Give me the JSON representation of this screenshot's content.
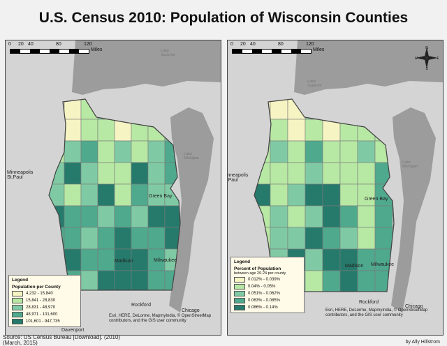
{
  "title": "U.S. Census 2010: Population of Wisconsin Counties",
  "scale": {
    "ticks": [
      "0",
      "20",
      "40",
      "80",
      "120"
    ],
    "unit": "Miles"
  },
  "left_map": {
    "legend": {
      "title": "Legend",
      "subtitle": "Population per County",
      "items": [
        {
          "label": "4,232 - 15,840",
          "color": "#f6f4c3"
        },
        {
          "label": "15,841 - 28,830",
          "color": "#b7e8a4"
        },
        {
          "label": "28,831 - 48,970",
          "color": "#7fcaa4"
        },
        {
          "label": "48,971 - 101,600",
          "color": "#4fa98d"
        },
        {
          "label": "101,601 - 947,735",
          "color": "#267a6b"
        }
      ]
    },
    "places": {
      "minneapolis": "Minneapolis\nSt.Paul",
      "madison": "Madison",
      "milwaukee": "Milwaukee",
      "green_bay": "Green Bay",
      "rockford": "Rockford",
      "chicago": "Chicago",
      "davenport": "Davenport",
      "lake_superior": "Lake\nSuperior",
      "lake_michigan": "Lake\nMichigan"
    },
    "attribution": "Esri, HERE, DeLorme, MapmyIndia, © OpenStreetMap contributors, and the GIS user community"
  },
  "right_map": {
    "legend": {
      "title": "Legend",
      "subtitle": "Percent of Population",
      "subtitle2": "between age 20-24 per county",
      "items": [
        {
          "label": "0.012% - 0.039%",
          "color": "#f6f4c3"
        },
        {
          "label": "0.04% - 0.05%",
          "color": "#b7e8a4"
        },
        {
          "label": "0.051% - 0.062%",
          "color": "#7fcaa4"
        },
        {
          "label": "0.063% - 0.085%",
          "color": "#4fa98d"
        },
        {
          "label": "0.086% - 0.14%",
          "color": "#267a6b"
        }
      ]
    },
    "places": {
      "minneapolis": "Minneapolis\nSt.Paul",
      "madison": "Madison",
      "milwaukee": "Milwaukee",
      "green_bay": "Green Bay",
      "rockford": "Rockford",
      "chicago": "Chicago",
      "lake_superior": "Lake\nSuperior",
      "lake_michigan": "Lake\nMichigan"
    },
    "attribution": "Esri, HERE, DeLorme, MapmyIndia, © OpenStreetMap contributors, and the GIS user community",
    "compass": {
      "n": "N",
      "s": "S",
      "e": "E",
      "w": "W"
    }
  },
  "source": "Source: US Census Bureau [Download]. (2010)\n(March, 2015)",
  "credit": "by Ally Hillstrom",
  "colors": {
    "class1": "#f6f4c3",
    "class2": "#b7e8a4",
    "class3": "#7fcaa4",
    "class4": "#4fa98d",
    "class5": "#267a6b",
    "water": "#9c9c9c",
    "land": "#d6d6d6"
  },
  "county_classes": {
    "left": [
      1,
      1,
      2,
      3,
      3,
      1,
      1,
      3,
      2,
      1,
      2,
      2,
      1,
      2,
      2,
      3,
      2,
      3,
      4,
      2,
      3,
      2,
      3,
      4,
      3,
      5,
      3,
      2,
      2,
      5,
      3,
      4,
      3,
      2,
      3,
      5,
      2,
      4,
      3,
      3,
      5,
      4,
      4,
      3,
      4,
      3,
      5,
      5,
      4,
      4,
      3,
      4,
      5,
      4,
      4,
      5,
      4,
      5,
      4,
      4,
      5,
      5,
      4,
      3,
      5,
      4,
      3,
      5,
      5,
      5,
      4,
      4
    ],
    "right": [
      1,
      1,
      1,
      3,
      4,
      2,
      1,
      4,
      2,
      2,
      1,
      2,
      1,
      2,
      2,
      2,
      2,
      3,
      2,
      4,
      2,
      2,
      3,
      2,
      2,
      2,
      2,
      3,
      2,
      2,
      2,
      4,
      5,
      2,
      3,
      5,
      5,
      2,
      2,
      4,
      2,
      3,
      2,
      3,
      5,
      4,
      2,
      4,
      2,
      3,
      3,
      5,
      4,
      3,
      2,
      4,
      2,
      3,
      5,
      3,
      5,
      5,
      4,
      4,
      5,
      3,
      3,
      2,
      4,
      5,
      4,
      4
    ]
  }
}
